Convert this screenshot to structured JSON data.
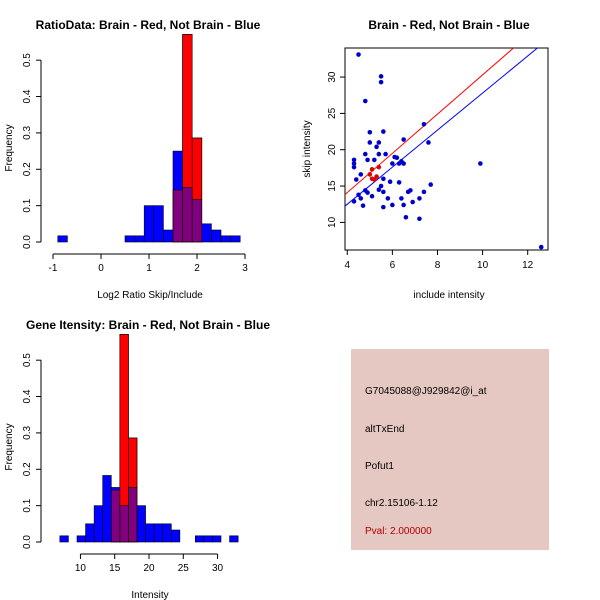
{
  "chart_data": [
    {
      "type": "histogram",
      "title": "RatioData: Brain - Red, Not Brain - Blue",
      "xlabel": "Log2 Ratio Skip/Include",
      "ylabel": "Frequency",
      "xlim": [
        -1,
        3
      ],
      "ylim": [
        0,
        0.55
      ],
      "xticks": [
        -1,
        0,
        1,
        2,
        3
      ],
      "yticks": [
        0.0,
        0.1,
        0.2,
        0.3,
        0.4,
        0.5
      ],
      "series": [
        {
          "name": "Not Brain",
          "color": "#0000ff",
          "bin_width": 0.2,
          "bins": [
            {
              "x0": -0.9,
              "v": 0.017
            },
            {
              "x0": 0.5,
              "v": 0.017
            },
            {
              "x0": 0.7,
              "v": 0.017
            },
            {
              "x0": 0.9,
              "v": 0.1
            },
            {
              "x0": 1.1,
              "v": 0.1
            },
            {
              "x0": 1.3,
              "v": 0.033
            },
            {
              "x0": 1.5,
              "v": 0.25
            },
            {
              "x0": 1.7,
              "v": 0.15
            },
            {
              "x0": 1.9,
              "v": 0.117
            },
            {
              "x0": 2.1,
              "v": 0.05
            },
            {
              "x0": 2.3,
              "v": 0.033
            },
            {
              "x0": 2.5,
              "v": 0.017
            },
            {
              "x0": 2.7,
              "v": 0.017
            }
          ]
        },
        {
          "name": "Brain",
          "color": "#ff0000",
          "bin_width": 0.2,
          "bins": [
            {
              "x0": 1.5,
              "v": 0.143
            },
            {
              "x0": 1.7,
              "v": 0.571
            },
            {
              "x0": 1.9,
              "v": 0.286
            }
          ]
        }
      ]
    },
    {
      "type": "scatter",
      "title": "Brain - Red, Not Brain - Blue",
      "xlabel": "include intensity",
      "ylabel": "skip intensity",
      "xlim": [
        3.9,
        12.9
      ],
      "ylim": [
        6.2,
        34
      ],
      "xticks": [
        4,
        6,
        8,
        10,
        12
      ],
      "yticks": [
        10,
        15,
        20,
        25,
        30
      ],
      "lines": [
        {
          "name": "Brain fit",
          "color": "#ff0000",
          "intercept": 3.3,
          "slope": 2.7
        },
        {
          "name": "Not Brain fit",
          "color": "#0000ff",
          "intercept": 2.3,
          "slope": 2.55
        }
      ],
      "series": [
        {
          "name": "Not Brain",
          "color": "#0000cc",
          "points": [
            [
              4.5,
              33.1
            ],
            [
              4.3,
              18.1
            ],
            [
              4.3,
              18.6
            ],
            [
              4.3,
              17.6
            ],
            [
              4.4,
              15.9
            ],
            [
              4.3,
              12.9
            ],
            [
              4.5,
              13.8
            ],
            [
              4.6,
              13.3
            ],
            [
              4.8,
              14.4
            ],
            [
              4.9,
              18.6
            ],
            [
              4.8,
              19.4
            ],
            [
              4.8,
              26.7
            ],
            [
              5.0,
              21.0
            ],
            [
              5.0,
              22.4
            ],
            [
              5.2,
              18.6
            ],
            [
              5.4,
              19.4
            ],
            [
              5.4,
              21.0
            ],
            [
              5.3,
              20.4
            ],
            [
              5.5,
              30.1
            ],
            [
              5.5,
              29.3
            ],
            [
              5.6,
              22.5
            ],
            [
              5.6,
              16.0
            ],
            [
              5.7,
              19.4
            ],
            [
              5.5,
              15.0
            ],
            [
              5.4,
              14.5
            ],
            [
              5.6,
              14.2
            ],
            [
              5.8,
              13.3
            ],
            [
              5.9,
              15.6
            ],
            [
              6.0,
              18.1
            ],
            [
              6.1,
              19.0
            ],
            [
              6.2,
              18.9
            ],
            [
              6.3,
              18.1
            ],
            [
              6.4,
              18.4
            ],
            [
              6.3,
              15.5
            ],
            [
              6.4,
              13.3
            ],
            [
              6.6,
              10.7
            ],
            [
              6.5,
              12.4
            ],
            [
              6.7,
              14.2
            ],
            [
              6.8,
              14.4
            ],
            [
              6.9,
              12.8
            ],
            [
              7.2,
              13.3
            ],
            [
              7.2,
              10.5
            ],
            [
              7.4,
              14.2
            ],
            [
              7.7,
              15.2
            ],
            [
              7.4,
              23.5
            ],
            [
              7.6,
              21.0
            ],
            [
              6.5,
              18.1
            ],
            [
              6.5,
              21.4
            ],
            [
              6.0,
              12.4
            ],
            [
              5.6,
              12.1
            ],
            [
              5.1,
              13.6
            ],
            [
              4.9,
              14.1
            ],
            [
              4.6,
              16.6
            ],
            [
              4.7,
              12.3
            ],
            [
              9.9,
              18.1
            ],
            [
              12.6,
              6.6
            ]
          ]
        },
        {
          "name": "Brain",
          "color": "#dd0000",
          "points": [
            [
              5.0,
              16.6
            ],
            [
              5.1,
              17.3
            ],
            [
              5.3,
              16.3
            ],
            [
              5.2,
              15.9
            ],
            [
              5.4,
              17.6
            ],
            [
              5.1,
              16.0
            ]
          ]
        }
      ]
    },
    {
      "type": "histogram",
      "title": "Gene Itensity: Brain - Red, Not Brain - Blue",
      "xlabel": "Intensity",
      "ylabel": "Frequency",
      "xlim": [
        6,
        34
      ],
      "ylim": [
        0,
        0.55
      ],
      "xticks": [
        10,
        15,
        20,
        25,
        30
      ],
      "yticks": [
        0.0,
        0.1,
        0.2,
        0.3,
        0.4,
        0.5
      ],
      "series": [
        {
          "name": "Not Brain",
          "color": "#0000ff",
          "bin_width": 1.25,
          "bins": [
            {
              "x0": 7.0,
              "v": 0.017
            },
            {
              "x0": 9.5,
              "v": 0.017
            },
            {
              "x0": 10.75,
              "v": 0.05
            },
            {
              "x0": 12.0,
              "v": 0.1
            },
            {
              "x0": 13.25,
              "v": 0.183
            },
            {
              "x0": 14.5,
              "v": 0.15
            },
            {
              "x0": 15.75,
              "v": 0.1
            },
            {
              "x0": 17.0,
              "v": 0.15
            },
            {
              "x0": 18.25,
              "v": 0.1
            },
            {
              "x0": 19.5,
              "v": 0.05
            },
            {
              "x0": 20.75,
              "v": 0.05
            },
            {
              "x0": 22.0,
              "v": 0.05
            },
            {
              "x0": 23.25,
              "v": 0.033
            },
            {
              "x0": 26.75,
              "v": 0.017
            },
            {
              "x0": 28.0,
              "v": 0.017
            },
            {
              "x0": 29.25,
              "v": 0.017
            },
            {
              "x0": 31.75,
              "v": 0.017
            }
          ]
        },
        {
          "name": "Brain",
          "color": "#ff0000",
          "bin_width": 1.25,
          "bins": [
            {
              "x0": 14.5,
              "v": 0.143
            },
            {
              "x0": 15.75,
              "v": 0.571
            },
            {
              "x0": 17.0,
              "v": 0.286
            }
          ]
        }
      ]
    }
  ],
  "info_panel": {
    "probe_id": "G7045088@J929842@i_at",
    "event_type": "altTxEnd",
    "gene": "Pofut1",
    "location": "chr2.15106-1.12",
    "pval": "Pval: 2.000000"
  }
}
